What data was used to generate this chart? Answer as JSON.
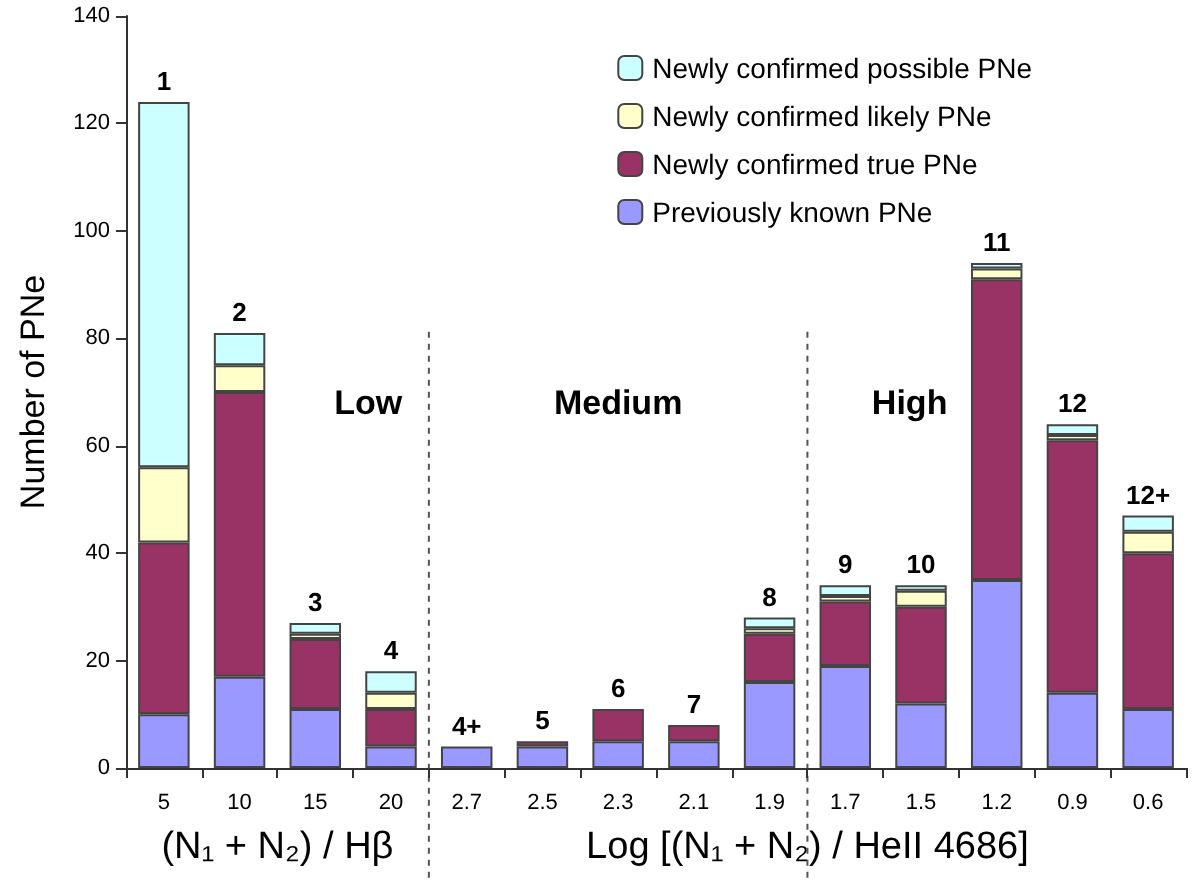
{
  "chart_data": {
    "type": "bar",
    "stacked": true,
    "categories": [
      "5",
      "10",
      "15",
      "20",
      "2.7",
      "2.5",
      "2.3",
      "2.1",
      "1.9",
      "1.7",
      "1.5",
      "1.2",
      "0.9",
      "0.6"
    ],
    "series": [
      {
        "name": "Previously known PNe",
        "color": "#9999ff",
        "values": [
          10,
          17,
          11,
          4,
          4,
          4,
          5,
          5,
          16,
          19,
          12,
          35,
          14,
          11
        ]
      },
      {
        "name": "Newly confirmed true PNe",
        "color": "#993366",
        "values": [
          32,
          53,
          13,
          7,
          0,
          1,
          6,
          3,
          9,
          12,
          18,
          56,
          47,
          29
        ]
      },
      {
        "name": "Newly confirmed likely PNe",
        "color": "#ffffcc",
        "values": [
          14,
          5,
          1,
          3,
          0,
          0,
          0,
          0,
          1,
          1,
          3,
          2,
          1,
          4
        ]
      },
      {
        "name": "Newly confirmed possible PNe",
        "color": "#ccffff",
        "values": [
          68,
          6,
          2,
          4,
          0,
          0,
          0,
          0,
          2,
          2,
          1,
          1,
          2,
          3
        ]
      }
    ],
    "ylabel": "Number of PNe",
    "xlabel": "Log [(N₁ + N₂) / HeII 4686]",
    "ylim": [
      0,
      140
    ],
    "yticks": [
      0,
      20,
      40,
      60,
      80,
      100,
      120,
      140
    ],
    "grid": false,
    "legend": "top right",
    "annotations": [
      "(N₁ + N₂) / Hβ",
      "Low",
      "Medium",
      "High",
      {
        "text": "1",
        "x": "5",
        "y": 124
      },
      {
        "text": "2",
        "x": "10",
        "y": 81
      },
      {
        "text": "3",
        "x": "15",
        "y": 27
      },
      {
        "text": "4",
        "x": "20",
        "y": 18
      },
      {
        "text": "4+",
        "x": "2.7",
        "y": 4
      },
      {
        "text": "5",
        "x": "2.5",
        "y": 5
      },
      {
        "text": "6",
        "x": "2.3",
        "y": 11
      },
      {
        "text": "7",
        "x": "2.1",
        "y": 8
      },
      {
        "text": "8",
        "x": "1.9",
        "y": 28
      },
      {
        "text": "9",
        "x": "1.7",
        "y": 34
      },
      {
        "text": "10",
        "x": "1.5",
        "y": 34
      },
      {
        "text": "11",
        "x": "1.2",
        "y": 94
      },
      {
        "text": "12",
        "x": "0.9",
        "y": 64
      },
      {
        "text": "12+",
        "x": "0.6",
        "y": 47
      }
    ]
  }
}
